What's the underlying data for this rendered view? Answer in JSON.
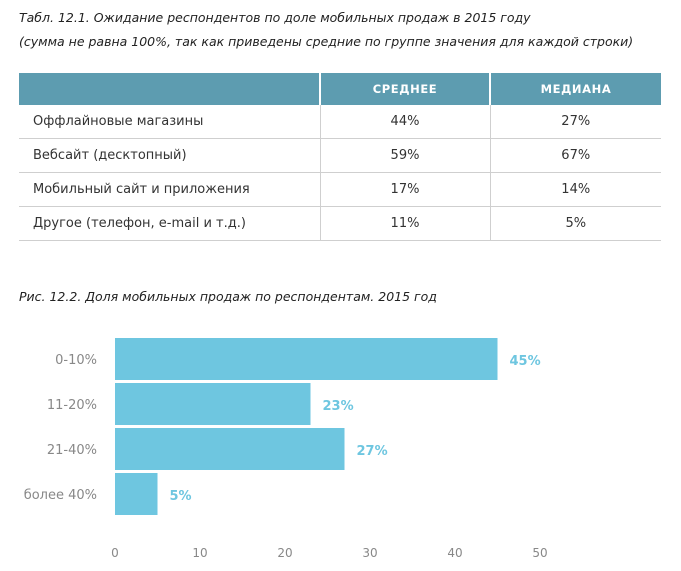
{
  "table": {
    "caption_line1": "Табл. 12.1. Ожидание респондентов по доле мобильных продаж в 2015 году",
    "caption_line2": "(сумма не равна 100%, так как приведены средние по группе значения для каждой строки)",
    "headers": [
      "",
      "СРЕДНЕЕ",
      "МЕДИАНА"
    ],
    "rows": [
      {
        "label": "Оффлайновые магазины",
        "mean": "44%",
        "median": "27%"
      },
      {
        "label": "Вебсайт (десктопный)",
        "mean": "59%",
        "median": "67%"
      },
      {
        "label": "Мобильный сайт и приложения",
        "mean": "17%",
        "median": "14%"
      },
      {
        "label": "Другое (телефон, e-mail и т.д.)",
        "mean": "11%",
        "median": "5%"
      }
    ]
  },
  "chart_data": {
    "type": "bar",
    "orientation": "horizontal",
    "title": "Рис. 12.2. Доля мобильных продаж по респондентам. 2015 год",
    "categories": [
      "0-10%",
      "11-20%",
      "21-40%",
      "более 40%"
    ],
    "values": [
      45,
      23,
      27,
      5
    ],
    "data_labels": [
      "45%",
      "23%",
      "27%",
      "5%"
    ],
    "x_ticks": [
      0,
      10,
      20,
      30,
      40,
      50
    ],
    "xlim": [
      0,
      50
    ],
    "xlabel": "",
    "ylabel": "",
    "grid": false,
    "colors": {
      "bar": "#6ec6e0",
      "label": "#6ec6e0",
      "axis_text": "#888888"
    }
  }
}
